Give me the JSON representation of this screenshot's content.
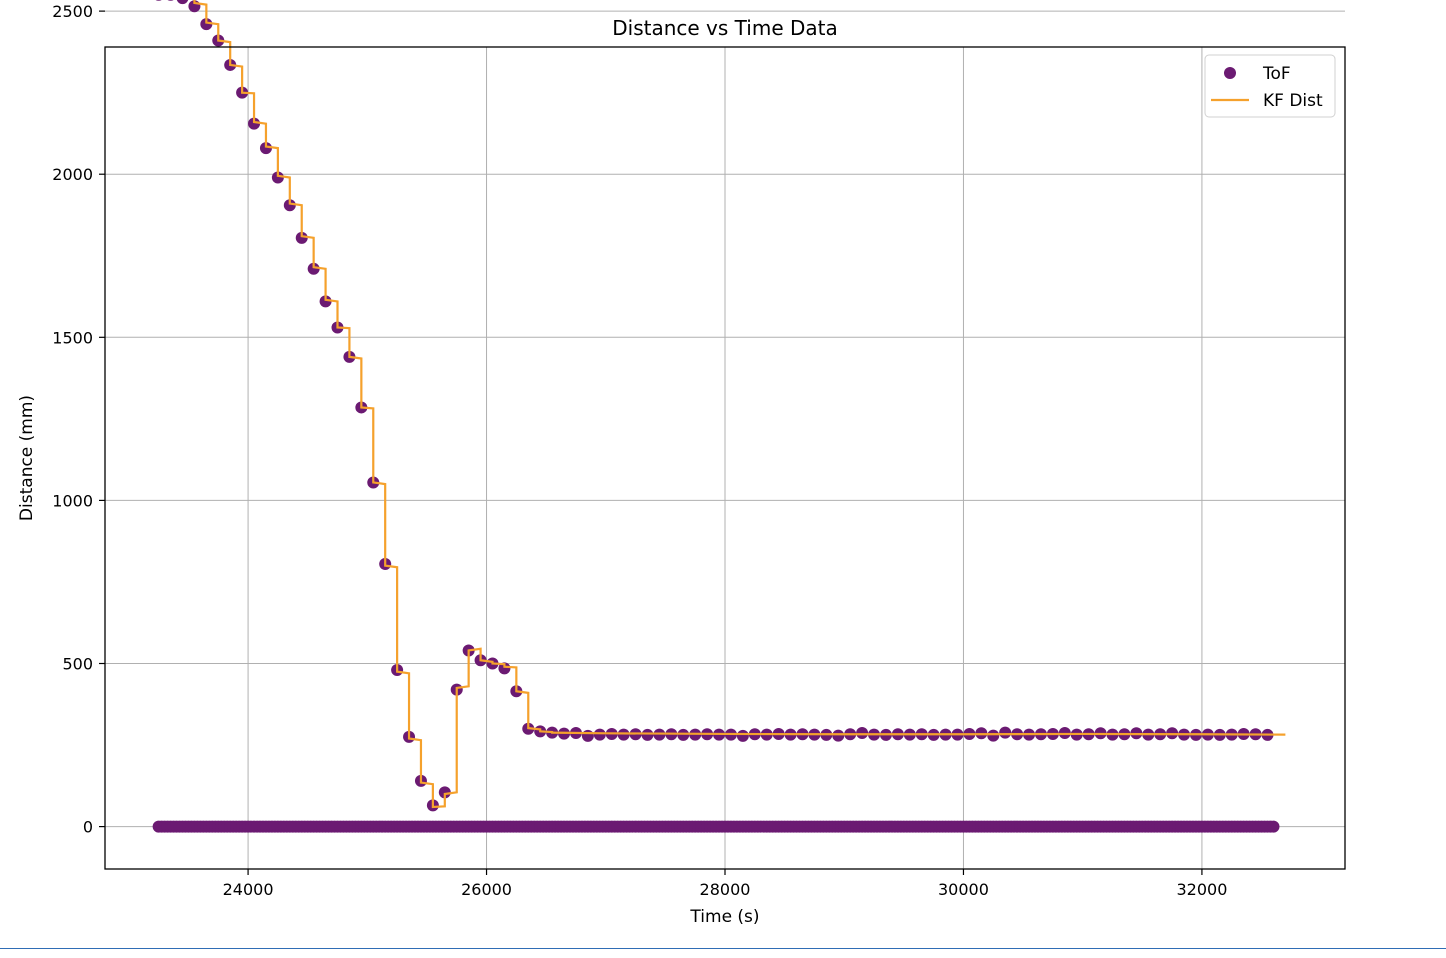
{
  "chart_data": {
    "type": "scatter",
    "title": "Distance vs Time Data",
    "xlabel": "Time (s)",
    "ylabel": "Distance (mm)",
    "xlim": [
      22800,
      33200
    ],
    "ylim": [
      -130,
      2390
    ],
    "xticks": [
      24000,
      26000,
      28000,
      30000,
      32000
    ],
    "yticks": [
      0,
      500,
      1000,
      1500,
      2000,
      2500
    ],
    "grid": true,
    "legend_position": "top-right",
    "colors": {
      "tof": "#6b1a72",
      "kf": "#f5a12c",
      "grid": "#b0b0b0"
    },
    "series": [
      {
        "name": "ToF",
        "kind": "scatter",
        "points": [
          [
            23250,
            2550
          ],
          [
            23350,
            2550
          ],
          [
            23450,
            2540
          ],
          [
            23550,
            2515
          ],
          [
            23650,
            2460
          ],
          [
            23750,
            2410
          ],
          [
            23850,
            2335
          ],
          [
            23950,
            2250
          ],
          [
            24050,
            2155
          ],
          [
            24150,
            2080
          ],
          [
            24250,
            1990
          ],
          [
            24350,
            1905
          ],
          [
            24450,
            1805
          ],
          [
            24550,
            1710
          ],
          [
            24650,
            1610
          ],
          [
            24750,
            1530
          ],
          [
            24850,
            1440
          ],
          [
            24950,
            1285
          ],
          [
            25050,
            1055
          ],
          [
            25150,
            805
          ],
          [
            25250,
            480
          ],
          [
            25350,
            275
          ],
          [
            25450,
            140
          ],
          [
            25550,
            65
          ],
          [
            25650,
            105
          ],
          [
            25750,
            420
          ],
          [
            25850,
            540
          ],
          [
            25950,
            510
          ],
          [
            26050,
            500
          ],
          [
            26150,
            485
          ],
          [
            26250,
            415
          ],
          [
            26350,
            300
          ],
          [
            26450,
            292
          ],
          [
            26550,
            288
          ],
          [
            26650,
            285
          ],
          [
            26750,
            287
          ],
          [
            26850,
            278
          ],
          [
            26950,
            282
          ],
          [
            27050,
            284
          ],
          [
            27150,
            282
          ],
          [
            27250,
            283
          ],
          [
            27350,
            281
          ],
          [
            27450,
            282
          ],
          [
            27550,
            283
          ],
          [
            27650,
            281
          ],
          [
            27750,
            282
          ],
          [
            27850,
            283
          ],
          [
            27950,
            282
          ],
          [
            28050,
            282
          ],
          [
            28150,
            278
          ],
          [
            28250,
            283
          ],
          [
            28350,
            282
          ],
          [
            28450,
            284
          ],
          [
            28550,
            282
          ],
          [
            28650,
            283
          ],
          [
            28750,
            282
          ],
          [
            28850,
            281
          ],
          [
            28950,
            279
          ],
          [
            29050,
            283
          ],
          [
            29150,
            287
          ],
          [
            29250,
            282
          ],
          [
            29350,
            281
          ],
          [
            29450,
            283
          ],
          [
            29550,
            282
          ],
          [
            29650,
            283
          ],
          [
            29750,
            281
          ],
          [
            29850,
            282
          ],
          [
            29950,
            282
          ],
          [
            30050,
            284
          ],
          [
            30150,
            286
          ],
          [
            30250,
            279
          ],
          [
            30350,
            288
          ],
          [
            30450,
            283
          ],
          [
            30550,
            282
          ],
          [
            30650,
            283
          ],
          [
            30750,
            284
          ],
          [
            30850,
            287
          ],
          [
            30950,
            282
          ],
          [
            31050,
            283
          ],
          [
            31150,
            286
          ],
          [
            31250,
            282
          ],
          [
            31350,
            283
          ],
          [
            31450,
            286
          ],
          [
            31550,
            282
          ],
          [
            31650,
            283
          ],
          [
            31750,
            286
          ],
          [
            31850,
            282
          ],
          [
            31950,
            281
          ],
          [
            32050,
            282
          ],
          [
            32150,
            281
          ],
          [
            32250,
            282
          ],
          [
            32350,
            284
          ],
          [
            32450,
            283
          ],
          [
            32550,
            281
          ],
          [
            23250,
            0
          ],
          [
            32600,
            0
          ]
        ]
      },
      {
        "name": "KF Dist",
        "kind": "line",
        "points": [
          [
            23250,
            2610
          ],
          [
            23350,
            2605
          ],
          [
            23350,
            2560
          ],
          [
            23450,
            2560
          ],
          [
            23450,
            2550
          ],
          [
            23550,
            2548
          ],
          [
            23550,
            2525
          ],
          [
            23650,
            2520
          ],
          [
            23650,
            2465
          ],
          [
            23750,
            2460
          ],
          [
            23750,
            2410
          ],
          [
            23850,
            2405
          ],
          [
            23850,
            2335
          ],
          [
            23950,
            2330
          ],
          [
            23950,
            2250
          ],
          [
            24050,
            2248
          ],
          [
            24050,
            2160
          ],
          [
            24150,
            2155
          ],
          [
            24150,
            2085
          ],
          [
            24250,
            2080
          ],
          [
            24250,
            1995
          ],
          [
            24350,
            1990
          ],
          [
            24350,
            1910
          ],
          [
            24450,
            1905
          ],
          [
            24450,
            1810
          ],
          [
            24550,
            1805
          ],
          [
            24550,
            1715
          ],
          [
            24650,
            1710
          ],
          [
            24650,
            1615
          ],
          [
            24750,
            1610
          ],
          [
            24750,
            1530
          ],
          [
            24850,
            1528
          ],
          [
            24850,
            1440
          ],
          [
            24950,
            1435
          ],
          [
            24950,
            1285
          ],
          [
            25050,
            1282
          ],
          [
            25050,
            1055
          ],
          [
            25150,
            1050
          ],
          [
            25150,
            800
          ],
          [
            25250,
            795
          ],
          [
            25250,
            475
          ],
          [
            25350,
            470
          ],
          [
            25350,
            270
          ],
          [
            25450,
            265
          ],
          [
            25450,
            135
          ],
          [
            25550,
            130
          ],
          [
            25550,
            60
          ],
          [
            25650,
            62
          ],
          [
            25650,
            100
          ],
          [
            25750,
            105
          ],
          [
            25750,
            425
          ],
          [
            25850,
            430
          ],
          [
            25850,
            540
          ],
          [
            25950,
            545
          ],
          [
            25950,
            510
          ],
          [
            26050,
            505
          ],
          [
            26050,
            500
          ],
          [
            26150,
            498
          ],
          [
            26150,
            490
          ],
          [
            26250,
            488
          ],
          [
            26250,
            415
          ],
          [
            26350,
            410
          ],
          [
            26350,
            302
          ],
          [
            26450,
            298
          ],
          [
            26450,
            292
          ],
          [
            26550,
            290
          ],
          [
            26550,
            288
          ],
          [
            27000,
            286
          ],
          [
            28000,
            284
          ],
          [
            29000,
            283
          ],
          [
            30000,
            283
          ],
          [
            31000,
            284
          ],
          [
            32000,
            283
          ],
          [
            32700,
            282
          ]
        ]
      }
    ]
  }
}
